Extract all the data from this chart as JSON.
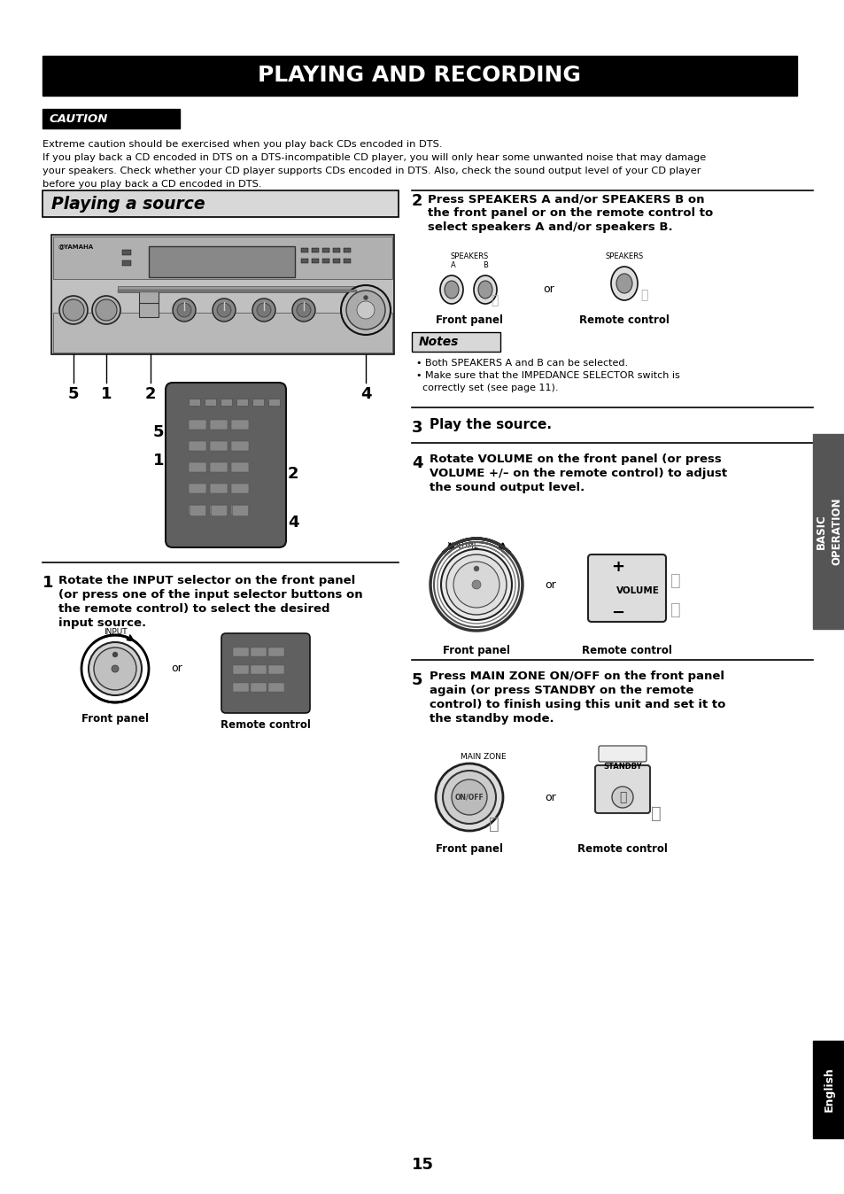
{
  "page_bg": "#ffffff",
  "title_text": "PLAYING AND RECORDING",
  "title_bg": "#000000",
  "title_color": "#ffffff",
  "caution_label": "CAUTION",
  "caution_bg": "#000000",
  "caution_text_color": "#ffffff",
  "caution_body_l1": "Extreme caution should be exercised when you play back CDs encoded in DTS.",
  "caution_body_l2": "If you play back a CD encoded in DTS on a DTS-incompatible CD player, you will only hear some unwanted noise that may damage",
  "caution_body_l3": "your speakers. Check whether your CD player supports CDs encoded in DTS. Also, check the sound output level of your CD player",
  "caution_body_l4": "before you play back a CD encoded in DTS.",
  "section_title": "Playing a source",
  "section_title_bg": "#d8d8d8",
  "step1_num": "1",
  "step1_l1": "Rotate the INPUT selector on the front panel",
  "step1_l2": "(or press one of the input selector buttons on",
  "step1_l3": "the remote control) to select the desired",
  "step1_l4": "input source.",
  "step2_num": "2",
  "step2_l1": "Press SPEAKERS A and/or SPEAKERS B on",
  "step2_l2": "the front panel or on the remote control to",
  "step2_l3": "select speakers A and/or speakers B.",
  "step3_num": "3",
  "step3_text": "Play the source.",
  "step4_num": "4",
  "step4_l1": "Rotate VOLUME on the front panel (or press",
  "step4_l2": "VOLUME +/– on the remote control) to adjust",
  "step4_l3": "the sound output level.",
  "step5_num": "5",
  "step5_l1": "Press MAIN ZONE ON/OFF on the front panel",
  "step5_l2": "again (or press STANDBY on the remote",
  "step5_l3": "control) to finish using this unit and set it to",
  "step5_l4": "the standby mode.",
  "notes_title": "Notes",
  "notes_l1": "• Both SPEAKERS A and B can be selected.",
  "notes_l2": "• Make sure that the IMPEDANCE SELECTOR switch is",
  "notes_l3": "  correctly set (see page 11).",
  "front_panel_label": "Front panel",
  "remote_control_label": "Remote control",
  "or_label": "or",
  "input_label": "INPUT",
  "volume_label": "VOLUME",
  "main_zone_label": "MAIN ZONE",
  "speakers_label": "SPEAKERS",
  "standby_label": "STANDBY",
  "page_number": "15",
  "side_tab_text": "BASIC\nOPERATION",
  "side_tab_bg": "#555555",
  "side_tab_color": "#ffffff",
  "bottom_tab_text": "English",
  "bottom_tab_bg": "#000000",
  "bottom_tab_color": "#ffffff",
  "label_color": "#000000"
}
